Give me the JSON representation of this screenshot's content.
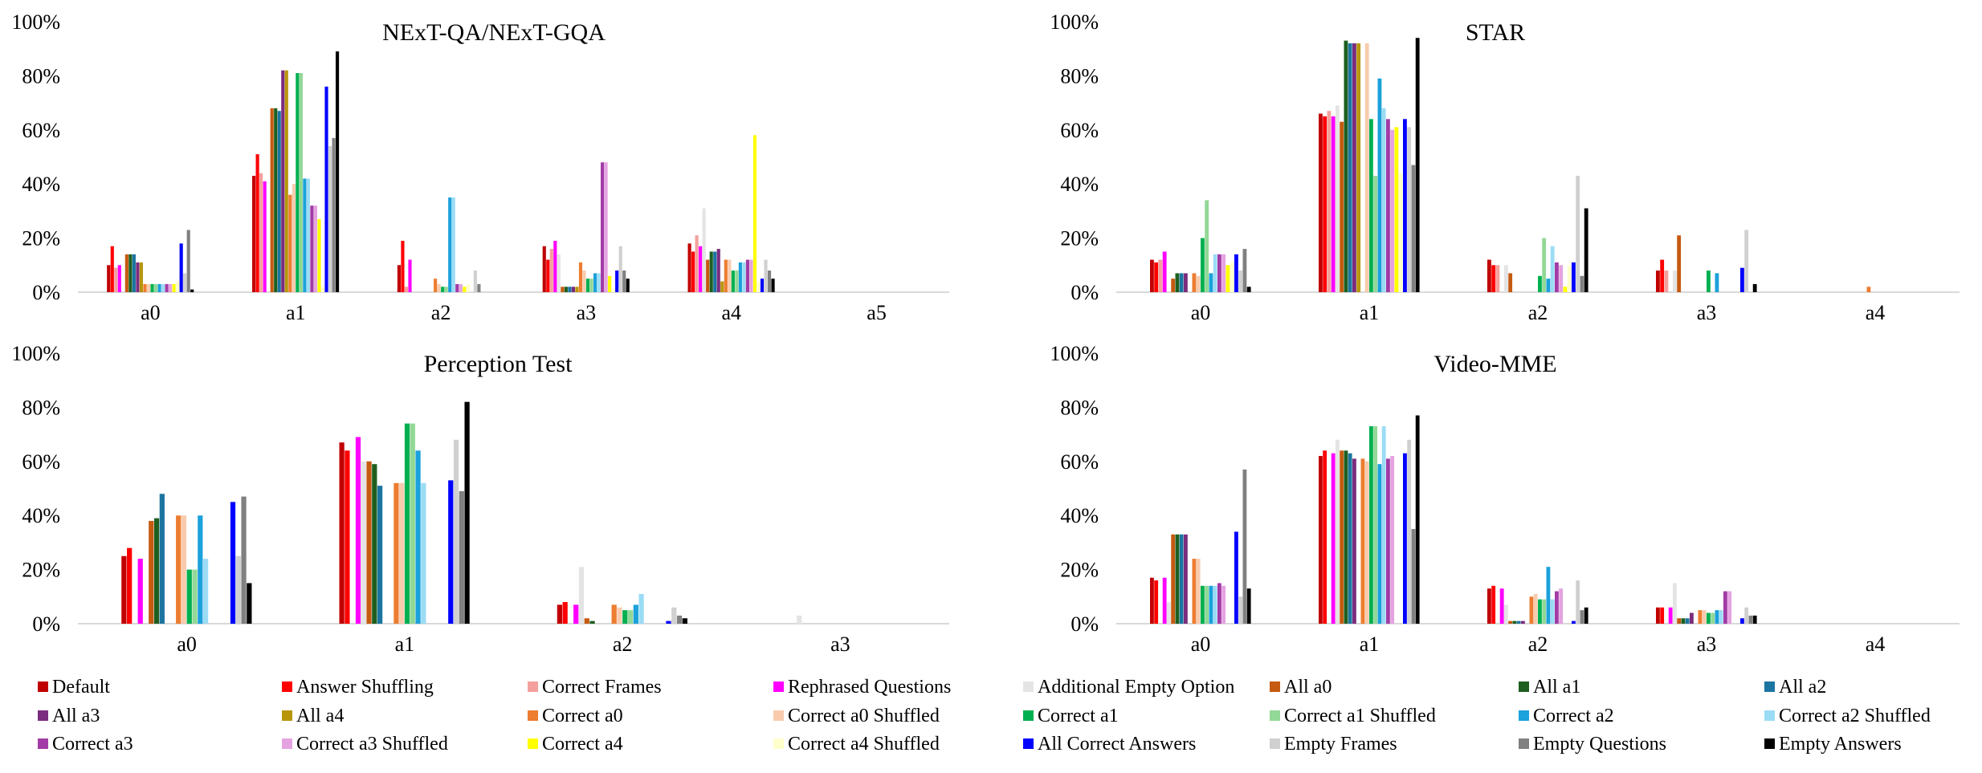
{
  "series": [
    {
      "name": "Default",
      "color": "#C00000"
    },
    {
      "name": "Answer Shuffling",
      "color": "#FF0000"
    },
    {
      "name": "Correct Frames",
      "color": "#F4A09C"
    },
    {
      "name": "Rephrased Questions",
      "color": "#FF00FF"
    },
    {
      "name": "Additional Empty Option",
      "color": "#E4E4E4"
    },
    {
      "name": "All a0",
      "color": "#C55A11"
    },
    {
      "name": "All a1",
      "color": "#1E5F20"
    },
    {
      "name": "All a2",
      "color": "#1B75A0"
    },
    {
      "name": "All a3",
      "color": "#7B2C7E"
    },
    {
      "name": "All a4",
      "color": "#B8960C"
    },
    {
      "name": "Correct a0",
      "color": "#ED7D31"
    },
    {
      "name": "Correct a0 Shuffled",
      "color": "#F8CBAD"
    },
    {
      "name": "Correct a1",
      "color": "#00B050"
    },
    {
      "name": "Correct a1 Shuffled",
      "color": "#92D896"
    },
    {
      "name": "Correct a2",
      "color": "#1BA1DB"
    },
    {
      "name": "Correct a2 Shuffled",
      "color": "#9BDCF5"
    },
    {
      "name": "Correct a3",
      "color": "#A23BA6"
    },
    {
      "name": "Correct a3 Shuffled",
      "color": "#E5A2E0"
    },
    {
      "name": "Correct a4",
      "color": "#FFFF00"
    },
    {
      "name": "Correct a4 Shuffled",
      "color": "#FFFFCC"
    },
    {
      "name": "All Correct Answers",
      "color": "#0000FF"
    },
    {
      "name": "Empty Frames",
      "color": "#D0D0D0"
    },
    {
      "name": "Empty Questions",
      "color": "#808080"
    },
    {
      "name": "Empty Answers",
      "color": "#000000"
    }
  ],
  "chart_data": [
    {
      "type": "bar",
      "title": "NExT-QA/NExT-GQA",
      "categories": [
        "a0",
        "a1",
        "a2",
        "a3",
        "a4",
        "a5"
      ],
      "ylim": [
        0,
        100
      ],
      "yticks": [
        "0%",
        "20%",
        "40%",
        "60%",
        "80%",
        "100%"
      ],
      "values": [
        [
          10,
          17,
          9,
          10,
          0,
          14,
          14,
          14,
          11,
          11,
          3,
          3,
          3,
          3,
          3,
          3,
          3,
          3,
          3,
          4,
          18,
          7,
          23,
          1
        ],
        [
          43,
          51,
          44,
          41,
          0,
          68,
          68,
          67,
          82,
          82,
          36,
          40,
          81,
          81,
          42,
          42,
          32,
          32,
          27,
          2,
          76,
          54,
          57,
          89
        ],
        [
          10,
          19,
          2,
          12,
          0,
          0,
          0,
          0,
          0,
          0,
          5,
          3,
          2,
          2,
          35,
          35,
          3,
          3,
          2,
          3,
          0,
          8,
          3,
          0
        ],
        [
          17,
          12,
          16,
          19,
          14,
          2,
          2,
          2,
          2,
          2,
          11,
          8,
          5,
          5,
          7,
          7,
          48,
          48,
          6,
          1,
          8,
          17,
          8,
          5
        ],
        [
          18,
          15,
          21,
          17,
          31,
          12,
          15,
          15,
          16,
          4,
          12,
          12,
          8,
          8,
          11,
          11,
          12,
          12,
          58,
          4,
          5,
          12,
          8,
          5
        ],
        [
          0,
          0,
          0,
          0,
          0,
          0,
          0,
          0,
          0,
          0,
          0,
          0,
          0,
          0,
          0,
          0,
          0,
          0,
          0,
          0,
          0,
          0,
          0,
          0
        ]
      ]
    },
    {
      "type": "bar",
      "title": "STAR",
      "categories": [
        "a0",
        "a1",
        "a2",
        "a3",
        "a4"
      ],
      "ylim": [
        0,
        100
      ],
      "yticks": [
        "0%",
        "20%",
        "40%",
        "60%",
        "80%",
        "100%"
      ],
      "values": [
        [
          12,
          11,
          12,
          15,
          0,
          5,
          7,
          7,
          7,
          0,
          7,
          6,
          20,
          34,
          7,
          14,
          14,
          14,
          10,
          11,
          14,
          8,
          16,
          2
        ],
        [
          66,
          65,
          67,
          65,
          69,
          63,
          93,
          92,
          92,
          92,
          0,
          92,
          64,
          43,
          79,
          68,
          64,
          60,
          61,
          44,
          64,
          61,
          47,
          94
        ],
        [
          12,
          10,
          10,
          0,
          10,
          7,
          0,
          0,
          0,
          0,
          0,
          0,
          6,
          20,
          5,
          17,
          11,
          10,
          2,
          10,
          11,
          43,
          6,
          31
        ],
        [
          8,
          12,
          8,
          0,
          8,
          21,
          0,
          0,
          0,
          0,
          0,
          0,
          8,
          0,
          7,
          0,
          0,
          0,
          0,
          0,
          9,
          23,
          0,
          3
        ],
        [
          0,
          0,
          0,
          0,
          0,
          0,
          0,
          0,
          0,
          0,
          2,
          0,
          0,
          0,
          0,
          0,
          0,
          0,
          0,
          0,
          0,
          0,
          0,
          0
        ]
      ]
    },
    {
      "type": "bar",
      "title": "Perception Test",
      "categories": [
        "a0",
        "a1",
        "a2",
        "a3"
      ],
      "ylim": [
        0,
        100
      ],
      "yticks": [
        "0%",
        "20%",
        "40%",
        "60%",
        "80%",
        "100%"
      ],
      "values": [
        [
          25,
          28,
          0,
          24,
          0,
          38,
          39,
          48,
          0,
          0,
          40,
          40,
          20,
          20,
          40,
          24,
          0,
          0,
          0,
          0,
          45,
          25,
          47,
          15
        ],
        [
          67,
          64,
          0,
          69,
          60,
          60,
          59,
          51,
          0,
          0,
          52,
          52,
          74,
          74,
          64,
          52,
          0,
          0,
          0,
          0,
          53,
          68,
          49,
          82
        ],
        [
          7,
          8,
          0,
          7,
          21,
          2,
          1,
          0,
          0,
          0,
          7,
          6,
          5,
          5,
          7,
          11,
          0,
          0,
          0,
          0,
          1,
          6,
          3,
          2
        ],
        [
          0,
          0,
          0,
          0,
          3,
          0,
          0,
          0,
          0,
          0,
          0,
          0,
          0,
          0,
          0,
          0,
          0,
          0,
          0,
          0,
          0,
          0,
          0,
          0
        ]
      ]
    },
    {
      "type": "bar",
      "title": "Video-MME",
      "categories": [
        "a0",
        "a1",
        "a2",
        "a3",
        "a4"
      ],
      "ylim": [
        0,
        100
      ],
      "yticks": [
        "0%",
        "20%",
        "40%",
        "60%",
        "80%",
        "100%"
      ],
      "values": [
        [
          17,
          16,
          0,
          17,
          8,
          33,
          33,
          33,
          33,
          0,
          24,
          24,
          14,
          14,
          14,
          14,
          15,
          14,
          0,
          0,
          34,
          10,
          57,
          13
        ],
        [
          62,
          64,
          0,
          63,
          68,
          64,
          64,
          63,
          61,
          0,
          61,
          60,
          73,
          73,
          59,
          73,
          61,
          62,
          0,
          0,
          63,
          68,
          35,
          77
        ],
        [
          13,
          14,
          0,
          13,
          7,
          1,
          1,
          1,
          1,
          0,
          10,
          11,
          9,
          9,
          21,
          9,
          12,
          13,
          0,
          0,
          1,
          16,
          5,
          6
        ],
        [
          6,
          6,
          0,
          6,
          15,
          2,
          2,
          2,
          4,
          0,
          5,
          5,
          4,
          4,
          5,
          5,
          12,
          12,
          0,
          0,
          2,
          6,
          3,
          3
        ],
        [
          0,
          0,
          0,
          0,
          0,
          0,
          0,
          0,
          0,
          0,
          0,
          0,
          0,
          0,
          0,
          0,
          0,
          0,
          0,
          0,
          0,
          0,
          0,
          0
        ]
      ]
    }
  ]
}
